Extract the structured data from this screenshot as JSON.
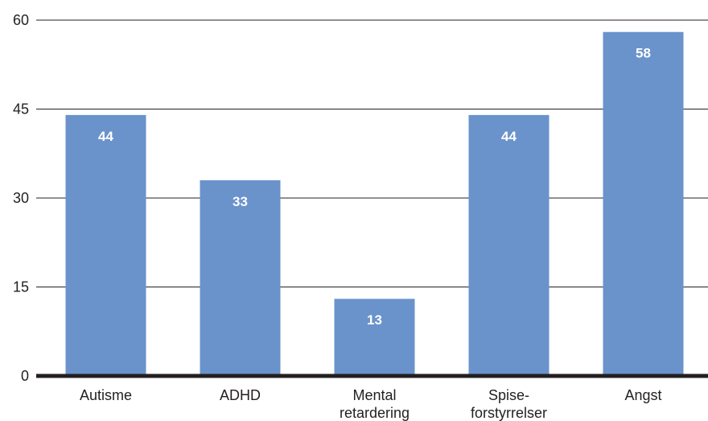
{
  "chart_data": {
    "type": "bar",
    "categories": [
      [
        "Autisme"
      ],
      [
        "ADHD"
      ],
      [
        "Mental",
        "retardering"
      ],
      [
        "Spise-",
        "forstyrrelser"
      ],
      [
        "Angst"
      ]
    ],
    "values": [
      44,
      33,
      13,
      44,
      58
    ],
    "data_labels": [
      "44",
      "33",
      "13",
      "44",
      "58"
    ],
    "ylim": [
      0,
      60
    ],
    "yticks": [
      0,
      15,
      30,
      45,
      60
    ],
    "ytick_labels": [
      "0",
      "15",
      "30",
      "45",
      "60"
    ],
    "grid": true,
    "title": "",
    "xlabel": "",
    "ylabel": "",
    "colors": {
      "bar": "#6a93cb",
      "grid": "#231f20",
      "baseline": "#231f20",
      "text": "#231f20",
      "data_label": "#ffffff"
    }
  }
}
